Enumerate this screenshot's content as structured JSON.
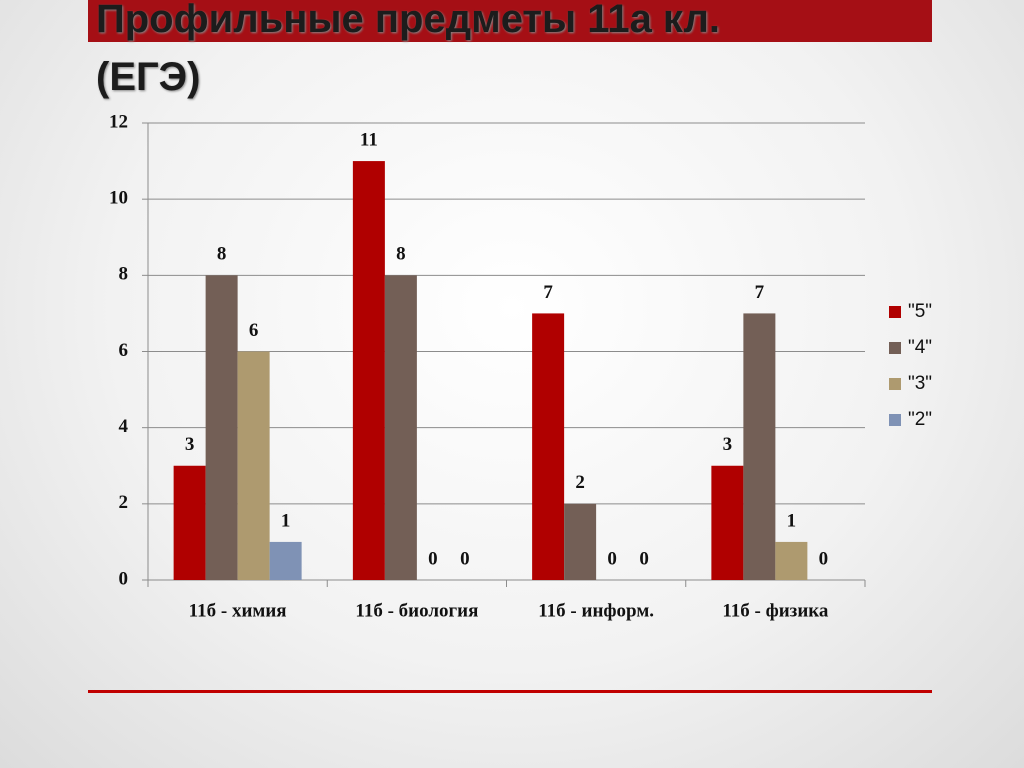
{
  "chart_data": {
    "type": "bar",
    "title": "Профильные предметы 11а кл. (ЕГЭ)",
    "categories": [
      "11б - химия",
      "11б - биология",
      "11б - информ.",
      "11б - физика"
    ],
    "series": [
      {
        "name": "\"5\"",
        "color": "#b00000",
        "values": [
          3,
          11,
          7,
          3
        ]
      },
      {
        "name": "\"4\"",
        "color": "#735f56",
        "values": [
          8,
          8,
          2,
          7
        ]
      },
      {
        "name": "\"3\"",
        "color": "#ae9a6f",
        "values": [
          6,
          0,
          0,
          1
        ]
      },
      {
        "name": "\"2\"",
        "color": "#7f92b5",
        "values": [
          1,
          0,
          0,
          0
        ]
      }
    ],
    "ylim": [
      0,
      12
    ],
    "yticks": [
      0,
      2,
      4,
      6,
      8,
      10,
      12
    ],
    "grid": true,
    "legend": "right"
  }
}
